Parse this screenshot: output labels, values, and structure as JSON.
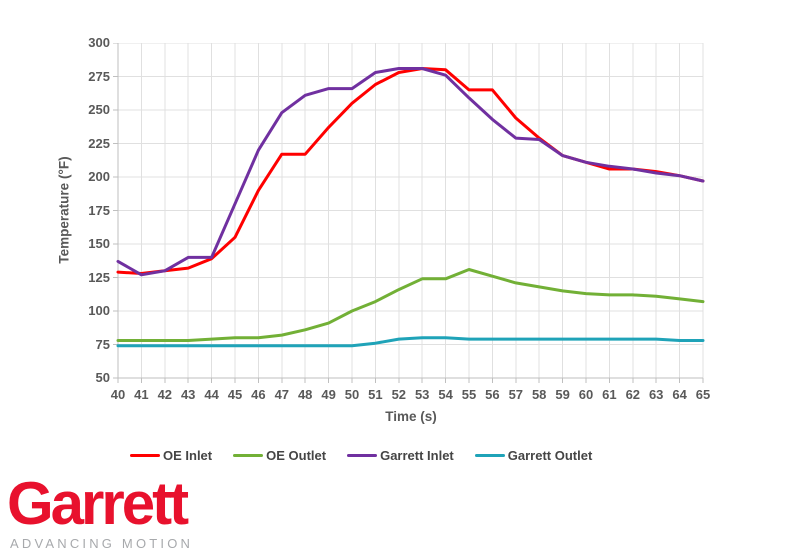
{
  "chart_data": {
    "type": "line",
    "title": "",
    "xlabel": "Time (s)",
    "ylabel": "Temperature (°F)",
    "x": [
      40,
      41,
      42,
      43,
      44,
      45,
      46,
      47,
      48,
      49,
      50,
      51,
      52,
      53,
      54,
      55,
      56,
      57,
      58,
      59,
      60,
      61,
      62,
      63,
      64,
      65
    ],
    "xlim": [
      40,
      65
    ],
    "ylim": [
      50,
      300
    ],
    "yticks": [
      50,
      75,
      100,
      125,
      150,
      175,
      200,
      225,
      250,
      275,
      300
    ],
    "grid": true,
    "legend_position": "bottom",
    "series": [
      {
        "name": "OE Inlet",
        "color": "#FF0000",
        "values": [
          129,
          128,
          130,
          132,
          139,
          155,
          190,
          217,
          217,
          237,
          255,
          269,
          278,
          281,
          280,
          265,
          265,
          244,
          229,
          216,
          211,
          206,
          206,
          204,
          201,
          197
        ]
      },
      {
        "name": "OE Outlet",
        "color": "#72B036",
        "values": [
          78,
          78,
          78,
          78,
          79,
          80,
          80,
          82,
          86,
          91,
          100,
          107,
          116,
          124,
          124,
          131,
          126,
          121,
          118,
          115,
          113,
          112,
          112,
          111,
          109,
          107
        ]
      },
      {
        "name": "Garrett Inlet",
        "color": "#7030A0",
        "values": [
          137,
          127,
          130,
          140,
          140,
          180,
          220,
          248,
          261,
          266,
          266,
          278,
          281,
          281,
          276,
          259,
          243,
          229,
          228,
          216,
          211,
          208,
          206,
          203,
          201,
          197
        ]
      },
      {
        "name": "Garrett Outlet",
        "color": "#1FA3B8",
        "values": [
          74,
          74,
          74,
          74,
          74,
          74,
          74,
          74,
          74,
          74,
          74,
          76,
          79,
          80,
          80,
          79,
          79,
          79,
          79,
          79,
          79,
          79,
          79,
          79,
          78,
          78
        ]
      }
    ]
  },
  "colors": {
    "grid": "#E0E0E0",
    "axis": "#BFBFBF",
    "tick_text": "#595959",
    "legend_text": "#454545"
  },
  "branding": {
    "logo_text": "Garrett",
    "tagline": "ADVANCING MOTION",
    "logo_color": "#E8112D",
    "tagline_color": "#A7A9AC"
  }
}
